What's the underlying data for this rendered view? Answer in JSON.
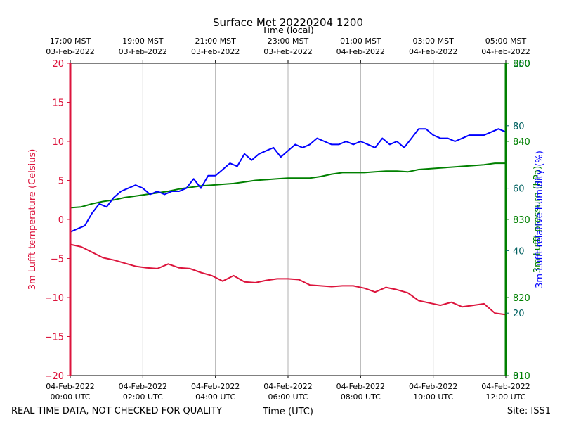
{
  "chart_data": {
    "type": "line",
    "title": "Surface Met 20220204 1200",
    "top_axis_label": "Time (local)",
    "xlabel": "Time (UTC)",
    "footer_left": "REAL TIME DATA, NOT CHECKED FOR QUALITY",
    "footer_right": "Site: ISS1",
    "x_range_hours": [
      0,
      12
    ],
    "x_ticks_hours": [
      0,
      2,
      4,
      6,
      8,
      10,
      12
    ],
    "x_tick_labels_utc": [
      [
        "04-Feb-2022",
        "00:00 UTC"
      ],
      [
        "04-Feb-2022",
        "02:00 UTC"
      ],
      [
        "04-Feb-2022",
        "04:00 UTC"
      ],
      [
        "04-Feb-2022",
        "06:00 UTC"
      ],
      [
        "04-Feb-2022",
        "08:00 UTC"
      ],
      [
        "04-Feb-2022",
        "10:00 UTC"
      ],
      [
        "04-Feb-2022",
        "12:00 UTC"
      ]
    ],
    "x_tick_labels_local": [
      [
        "17:00 MST",
        "03-Feb-2022"
      ],
      [
        "19:00 MST",
        "03-Feb-2022"
      ],
      [
        "21:00 MST",
        "03-Feb-2022"
      ],
      [
        "23:00 MST",
        "03-Feb-2022"
      ],
      [
        "01:00 MST",
        "04-Feb-2022"
      ],
      [
        "03:00 MST",
        "04-Feb-2022"
      ],
      [
        "05:00 MST",
        "04-Feb-2022"
      ]
    ],
    "left_axis": {
      "label": "3m Lufft temperature (Celsius)",
      "color": "#dc143c",
      "ylim": [
        -20,
        20
      ],
      "ticks": [
        20,
        15,
        10,
        5,
        0,
        -5,
        -10,
        -15,
        -20
      ],
      "tick_labels": [
        "20",
        "15",
        "10",
        "5",
        "0",
        "−5",
        "−10",
        "−15",
        "−20"
      ]
    },
    "right_axis_green": {
      "label": "3m Lufft pressure (hPa)",
      "color": "#008000",
      "ylim": [
        810,
        850
      ],
      "ticks": [
        850,
        840,
        830,
        820,
        810
      ],
      "tick_labels": [
        "850",
        "840",
        "830",
        "820",
        "810"
      ]
    },
    "right_axis_teal": {
      "color": "#006060",
      "ylim": [
        0,
        100
      ],
      "ticks": [
        100,
        80,
        60,
        40,
        20,
        0
      ],
      "tick_labels": [
        "100",
        "80",
        "60",
        "40",
        "20",
        "0"
      ]
    },
    "right_axis_blue": {
      "label": "3m Lufft relative humidity (%)",
      "color": "#0000ff"
    },
    "series": [
      {
        "name": "temperature",
        "axis": "left",
        "color": "#dc143c",
        "x": [
          0,
          0.3,
          0.6,
          0.9,
          1.2,
          1.5,
          1.8,
          2.1,
          2.4,
          2.7,
          3.0,
          3.3,
          3.6,
          3.9,
          4.2,
          4.5,
          4.8,
          5.1,
          5.4,
          5.7,
          6.0,
          6.3,
          6.6,
          6.9,
          7.2,
          7.5,
          7.8,
          8.1,
          8.4,
          8.7,
          9.0,
          9.3,
          9.6,
          9.9,
          10.2,
          10.5,
          10.8,
          11.1,
          11.4,
          11.7,
          12.0
        ],
        "values": [
          -3.2,
          -3.5,
          -4.2,
          -4.9,
          -5.2,
          -5.6,
          -6.0,
          -6.2,
          -6.3,
          -5.7,
          -6.2,
          -6.3,
          -6.8,
          -7.2,
          -7.9,
          -7.2,
          -8.0,
          -8.1,
          -7.8,
          -7.6,
          -7.6,
          -7.7,
          -8.4,
          -8.5,
          -8.6,
          -8.5,
          -8.5,
          -8.8,
          -9.3,
          -8.7,
          -9.0,
          -9.4,
          -10.4,
          -10.7,
          -11.0,
          -10.6,
          -11.2,
          -11.0,
          -10.8,
          -12.0,
          -12.2
        ]
      },
      {
        "name": "pressure",
        "axis": "right_axis_green",
        "color": "#008000",
        "x": [
          0,
          0.3,
          0.6,
          0.9,
          1.2,
          1.5,
          1.8,
          2.1,
          2.4,
          2.7,
          3.0,
          3.3,
          3.6,
          3.9,
          4.2,
          4.5,
          4.8,
          5.1,
          5.4,
          5.7,
          6.0,
          6.3,
          6.6,
          6.9,
          7.2,
          7.5,
          7.8,
          8.1,
          8.4,
          8.7,
          9.0,
          9.3,
          9.6,
          9.9,
          10.2,
          10.5,
          10.8,
          11.1,
          11.4,
          11.7,
          12.0
        ],
        "values": [
          831.5,
          831.6,
          832.0,
          832.3,
          832.5,
          832.8,
          833.0,
          833.2,
          833.4,
          833.6,
          833.9,
          834.1,
          834.3,
          834.4,
          834.5,
          834.6,
          834.8,
          835.0,
          835.1,
          835.2,
          835.3,
          835.3,
          835.3,
          835.5,
          835.8,
          836.0,
          836.0,
          836.0,
          836.1,
          836.2,
          836.2,
          836.1,
          836.4,
          836.5,
          836.6,
          836.7,
          836.8,
          836.9,
          837.0,
          837.2,
          837.2
        ]
      },
      {
        "name": "relative humidity",
        "axis": "right_axis_teal",
        "color": "#0000ff",
        "x": [
          0,
          0.2,
          0.4,
          0.6,
          0.8,
          1.0,
          1.2,
          1.4,
          1.6,
          1.8,
          2.0,
          2.2,
          2.4,
          2.6,
          2.8,
          3.0,
          3.2,
          3.4,
          3.6,
          3.8,
          4.0,
          4.2,
          4.4,
          4.6,
          4.8,
          5.0,
          5.2,
          5.4,
          5.6,
          5.8,
          6.0,
          6.2,
          6.4,
          6.6,
          6.8,
          7.0,
          7.2,
          7.4,
          7.6,
          7.8,
          8.0,
          8.2,
          8.4,
          8.6,
          8.8,
          9.0,
          9.2,
          9.4,
          9.6,
          9.8,
          10.0,
          10.2,
          10.4,
          10.6,
          10.8,
          11.0,
          11.2,
          11.4,
          11.6,
          11.8,
          12.0
        ],
        "values": [
          46,
          47,
          48,
          52,
          55,
          54,
          57,
          59,
          60,
          61,
          60,
          58,
          59,
          58,
          59,
          59,
          60,
          63,
          60,
          64,
          64,
          66,
          68,
          67,
          71,
          69,
          71,
          72,
          73,
          70,
          72,
          74,
          73,
          74,
          76,
          75,
          74,
          74,
          75,
          74,
          75,
          74,
          73,
          76,
          74,
          75,
          73,
          76,
          79,
          79,
          77,
          76,
          76,
          75,
          76,
          77,
          77,
          77,
          78,
          79,
          78
        ]
      }
    ]
  }
}
